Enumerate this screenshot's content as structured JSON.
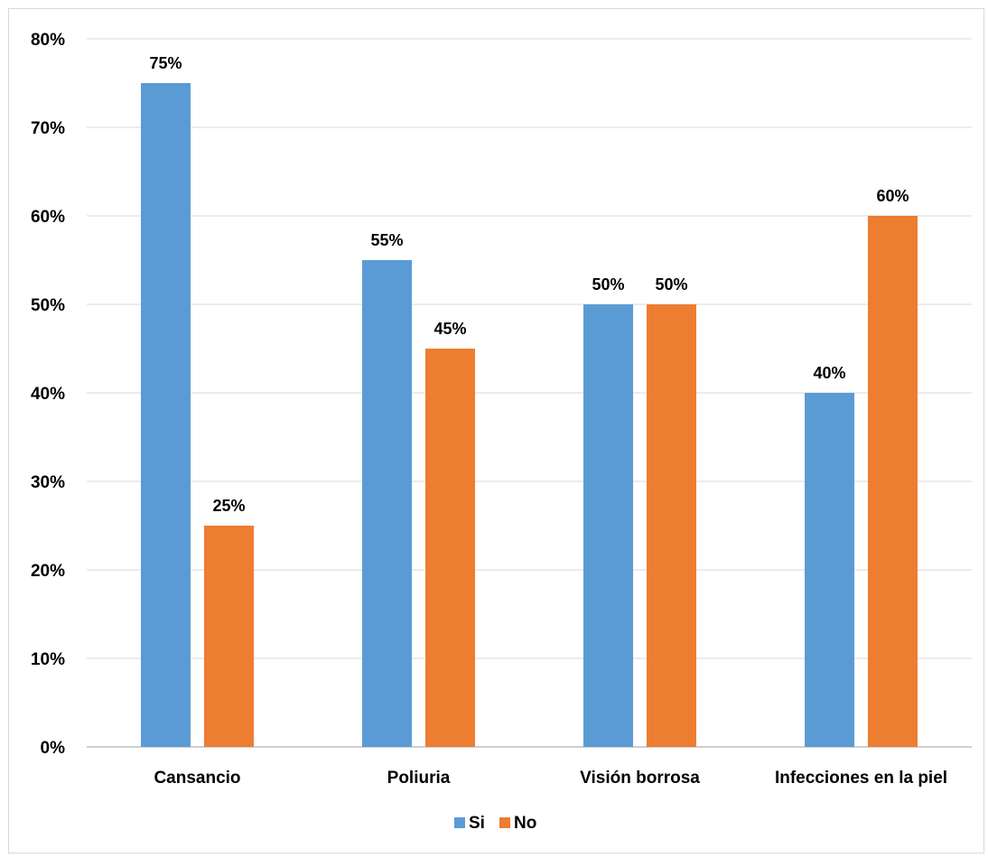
{
  "chart_data": {
    "type": "bar",
    "title": "",
    "xlabel": "",
    "ylabel": "",
    "categories": [
      "Cansancio",
      "Poliuria",
      "Visión borrosa",
      "Infecciones en la piel"
    ],
    "series": [
      {
        "name": "Si",
        "color": "#5b9bd5",
        "values": [
          75,
          55,
          50,
          40
        ]
      },
      {
        "name": "No",
        "color": "#ed7d31",
        "values": [
          25,
          45,
          50,
          60
        ]
      }
    ],
    "ylim": [
      0,
      80
    ],
    "yticks": [
      0,
      10,
      20,
      30,
      40,
      50,
      60,
      70,
      80
    ],
    "value_suffix": "%",
    "grid": true,
    "legend_position": "bottom",
    "gridline_color": "#d9d9d9",
    "axis_color": "#bfbfbf"
  }
}
